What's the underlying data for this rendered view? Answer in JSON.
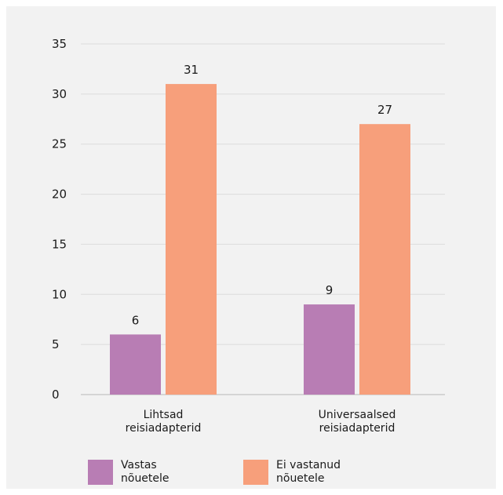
{
  "chart_data": {
    "type": "bar",
    "categories": [
      [
        "Lihtsad",
        "reisiadapterid"
      ],
      [
        "Universaalsed",
        "reisiadapterid"
      ]
    ],
    "series": [
      {
        "name": "Vastas nõuetele",
        "values": [
          6,
          9
        ],
        "color": "#b87db4"
      },
      {
        "name": "Ei vastanud nõuetele",
        "values": [
          31,
          27
        ],
        "color": "#f79f7b"
      }
    ],
    "ylim": [
      0,
      35
    ],
    "yticks": [
      0,
      5,
      10,
      15,
      20,
      25,
      30,
      35
    ],
    "grid": true,
    "legend_position": "bottom-left"
  },
  "legend": [
    {
      "line1": "Vastas",
      "line2": "nõuetele",
      "color": "#b87db4"
    },
    {
      "line1": "Ei vastanud",
      "line2": "nõuetele",
      "color": "#f79f7b"
    }
  ]
}
